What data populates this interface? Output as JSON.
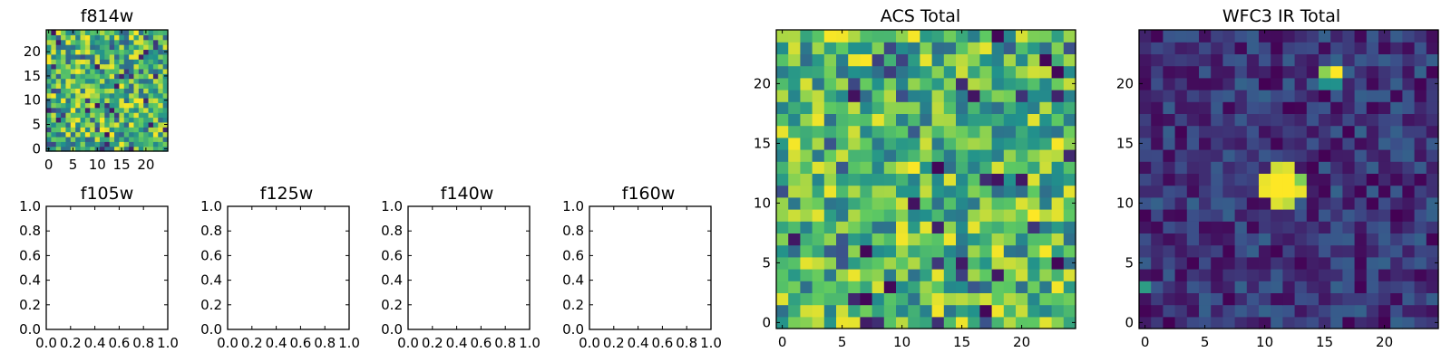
{
  "figure": {
    "background": "#ffffff",
    "colormap": "viridis",
    "colormap_stops": [
      "#440154",
      "#3b528b",
      "#21918c",
      "#5ec962",
      "#fde725"
    ]
  },
  "chart_data": [
    {
      "id": "f814w",
      "type": "heatmap",
      "title": "f814w",
      "grid_size": [
        25,
        25
      ],
      "xlim": [
        0,
        24
      ],
      "ylim": [
        0,
        24
      ],
      "xticks": [
        "0",
        "5",
        "10",
        "15",
        "20"
      ],
      "yticks": [
        "0",
        "5",
        "10",
        "15",
        "20"
      ],
      "description_values": "25x25 pixel noise image, mostly high values (green/yellow) with scattered low (dark) pixels",
      "noise_seed": 11,
      "level_range": [
        0.3,
        1.0
      ],
      "low_pixel_probability": 0.06
    },
    {
      "id": "f105w",
      "type": "heatmap",
      "title": "f105w",
      "empty": true,
      "xlim": [
        0.0,
        1.0
      ],
      "ylim": [
        0.0,
        1.0
      ],
      "xticks": [
        "0.0",
        "0.2",
        "0.4",
        "0.6",
        "0.8",
        "1.0"
      ],
      "yticks": [
        "0.0",
        "0.2",
        "0.4",
        "0.6",
        "0.8",
        "1.0"
      ]
    },
    {
      "id": "f125w",
      "type": "heatmap",
      "title": "f125w",
      "empty": true,
      "xlim": [
        0.0,
        1.0
      ],
      "ylim": [
        0.0,
        1.0
      ],
      "xticks": [
        "0.0",
        "0.2",
        "0.4",
        "0.6",
        "0.8",
        "1.0"
      ],
      "yticks": [
        "0.0",
        "0.2",
        "0.4",
        "0.6",
        "0.8",
        "1.0"
      ]
    },
    {
      "id": "f140w",
      "type": "heatmap",
      "title": "f140w",
      "empty": true,
      "xlim": [
        0.0,
        1.0
      ],
      "ylim": [
        0.0,
        1.0
      ],
      "xticks": [
        "0.0",
        "0.2",
        "0.4",
        "0.6",
        "0.8",
        "1.0"
      ],
      "yticks": [
        "0.0",
        "0.2",
        "0.4",
        "0.6",
        "0.8",
        "1.0"
      ]
    },
    {
      "id": "f160w",
      "type": "heatmap",
      "title": "f160w",
      "empty": true,
      "xlim": [
        0.0,
        1.0
      ],
      "ylim": [
        0.0,
        1.0
      ],
      "xticks": [
        "0.0",
        "0.2",
        "0.4",
        "0.6",
        "0.8",
        "1.0"
      ],
      "yticks": [
        "0.0",
        "0.2",
        "0.4",
        "0.6",
        "0.8",
        "1.0"
      ]
    },
    {
      "id": "acs-total",
      "type": "heatmap",
      "title": "ACS Total",
      "grid_size": [
        25,
        25
      ],
      "xlim": [
        0,
        24
      ],
      "ylim": [
        0,
        24
      ],
      "xticks": [
        "0",
        "5",
        "10",
        "15",
        "20"
      ],
      "yticks": [
        "0",
        "5",
        "10",
        "15",
        "20"
      ],
      "noise_seed": 29,
      "level_range": [
        0.35,
        1.0
      ],
      "low_pixel_probability": 0.05,
      "low_pixels": [
        [
          18,
          24
        ],
        [
          22,
          22
        ],
        [
          23,
          21
        ],
        [
          13,
          13
        ],
        [
          7,
          6
        ],
        [
          23,
          5
        ],
        [
          9,
          3
        ],
        [
          17,
          1
        ],
        [
          7,
          2
        ]
      ]
    },
    {
      "id": "wfc3-ir-total",
      "type": "heatmap",
      "title": "WFC3 IR Total",
      "grid_size": [
        25,
        25
      ],
      "xlim": [
        0,
        24
      ],
      "ylim": [
        0,
        24
      ],
      "xticks": [
        "0",
        "5",
        "10",
        "15",
        "20"
      ],
      "yticks": [
        "0",
        "5",
        "10",
        "15",
        "20"
      ],
      "noise_seed": 47,
      "level_range": [
        0.0,
        0.32
      ],
      "sources": [
        {
          "x": 10,
          "y": 12,
          "level": 0.97
        },
        {
          "x": 11,
          "y": 12,
          "level": 1.0
        },
        {
          "x": 12,
          "y": 12,
          "level": 1.0
        },
        {
          "x": 13,
          "y": 12,
          "level": 0.8
        },
        {
          "x": 10,
          "y": 11,
          "level": 0.98
        },
        {
          "x": 11,
          "y": 11,
          "level": 1.0
        },
        {
          "x": 12,
          "y": 11,
          "level": 1.0
        },
        {
          "x": 13,
          "y": 11,
          "level": 0.97
        },
        {
          "x": 11,
          "y": 13,
          "level": 0.93
        },
        {
          "x": 12,
          "y": 13,
          "level": 0.95
        },
        {
          "x": 11,
          "y": 10,
          "level": 0.95
        },
        {
          "x": 12,
          "y": 10,
          "level": 0.9
        },
        {
          "x": 15,
          "y": 21,
          "level": 0.82
        },
        {
          "x": 16,
          "y": 21,
          "level": 1.0
        },
        {
          "x": 15,
          "y": 20,
          "level": 0.5
        },
        {
          "x": 16,
          "y": 20,
          "level": 0.5
        },
        {
          "x": 0,
          "y": 3,
          "level": 0.55
        }
      ]
    }
  ]
}
